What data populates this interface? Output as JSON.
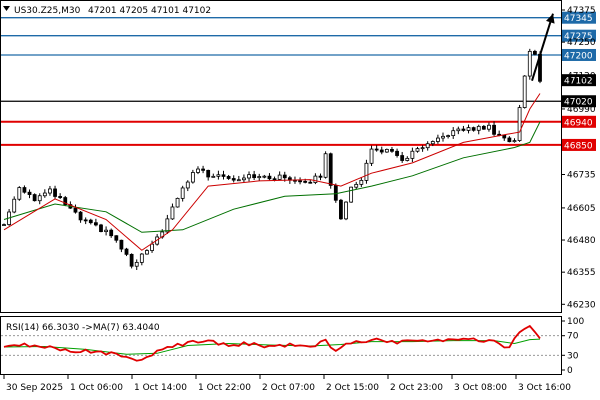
{
  "header": {
    "symbol": "US30.Z25,M30",
    "ohlc": "47201 47205 47101 47102"
  },
  "rsi_header": "RSI(14) 66.3030 ->MA(7) 63.4040",
  "colors": {
    "candle": "#000000",
    "ma_fast": "#cc0000",
    "ma_slow": "#007000",
    "support": "#e00000",
    "resistance": "#1e6aa8",
    "current": "#000000",
    "rsi": "#e00000",
    "rsi_ma": "#00a000"
  },
  "chart_data": [
    {
      "type": "candlestick",
      "symbol": "US30.Z25",
      "timeframe": "M30",
      "ylim": [
        46200,
        47410
      ],
      "y_ticks": [
        46230,
        46355,
        46480,
        46605,
        46735,
        46990,
        47120,
        47250,
        47375
      ],
      "x_ticks": [
        "30 Sep 2025",
        "1 Oct 06:00",
        "1 Oct 14:00",
        "1 Oct 22:00",
        "2 Oct 07:00",
        "2 Oct 15:00",
        "2 Oct 23:00",
        "3 Oct 08:00",
        "3 Oct 16:00"
      ],
      "levels": [
        {
          "value": 47345,
          "label": "47345",
          "kind": "resistance"
        },
        {
          "value": 47275,
          "label": "47275",
          "kind": "resistance"
        },
        {
          "value": 47200,
          "label": "47200",
          "kind": "resistance"
        },
        {
          "value": 47102,
          "label": "47102",
          "kind": "current"
        },
        {
          "value": 47020,
          "label": "47020",
          "kind": "pivot"
        },
        {
          "value": 46940,
          "label": "46940",
          "kind": "support"
        },
        {
          "value": 46850,
          "label": "46850",
          "kind": "support"
        }
      ],
      "arrow": {
        "direction": "up",
        "from": 47100,
        "to": 47345
      },
      "price_path": [
        [
          0,
          46540
        ],
        [
          3,
          46690
        ],
        [
          6,
          46640
        ],
        [
          9,
          46670
        ],
        [
          12,
          46620
        ],
        [
          15,
          46560
        ],
        [
          18,
          46530
        ],
        [
          21,
          46500
        ],
        [
          24,
          46420
        ],
        [
          25,
          46370
        ],
        [
          27,
          46420
        ],
        [
          29,
          46455
        ],
        [
          31,
          46520
        ],
        [
          33,
          46600
        ],
        [
          35,
          46680
        ],
        [
          37,
          46740
        ],
        [
          38,
          46760
        ],
        [
          40,
          46730
        ],
        [
          42,
          46740
        ],
        [
          45,
          46715
        ],
        [
          48,
          46735
        ],
        [
          51,
          46720
        ],
        [
          54,
          46725
        ],
        [
          57,
          46715
        ],
        [
          60,
          46710
        ],
        [
          62,
          46730
        ],
        [
          63,
          46810
        ],
        [
          64,
          46700
        ],
        [
          65,
          46640
        ],
        [
          66,
          46570
        ],
        [
          67,
          46620
        ],
        [
          68,
          46680
        ],
        [
          70,
          46720
        ],
        [
          72,
          46830
        ],
        [
          75,
          46830
        ],
        [
          78,
          46790
        ],
        [
          81,
          46830
        ],
        [
          84,
          46855
        ],
        [
          87,
          46895
        ],
        [
          90,
          46910
        ],
        [
          93,
          46915
        ],
        [
          95,
          46920
        ],
        [
          96,
          46900
        ],
        [
          98,
          46880
        ],
        [
          99,
          46860
        ],
        [
          100,
          46870
        ],
        [
          101,
          46990
        ],
        [
          102,
          47120
        ],
        [
          103,
          47220
        ],
        [
          104,
          47205
        ],
        [
          105,
          47102
        ]
      ],
      "ma_fast": [
        [
          0,
          46520
        ],
        [
          10,
          46640
        ],
        [
          20,
          46560
        ],
        [
          27,
          46440
        ],
        [
          33,
          46520
        ],
        [
          40,
          46690
        ],
        [
          50,
          46710
        ],
        [
          60,
          46715
        ],
        [
          66,
          46690
        ],
        [
          72,
          46740
        ],
        [
          80,
          46780
        ],
        [
          90,
          46860
        ],
        [
          98,
          46890
        ],
        [
          101,
          46900
        ],
        [
          103,
          46990
        ],
        [
          105,
          47050
        ]
      ],
      "ma_slow": [
        [
          0,
          46560
        ],
        [
          10,
          46620
        ],
        [
          20,
          46590
        ],
        [
          27,
          46510
        ],
        [
          35,
          46520
        ],
        [
          45,
          46600
        ],
        [
          55,
          46650
        ],
        [
          65,
          46660
        ],
        [
          72,
          46690
        ],
        [
          80,
          46730
        ],
        [
          90,
          46800
        ],
        [
          100,
          46840
        ],
        [
          103,
          46860
        ],
        [
          105,
          46940
        ]
      ]
    },
    {
      "type": "line",
      "title": "RSI(14) 66.3030 ->MA(7) 63.4040",
      "ylim": [
        0,
        100
      ],
      "y_ticks": [
        100,
        70,
        30,
        0
      ],
      "levels": [
        70,
        30
      ],
      "series": [
        {
          "name": "RSI(14)",
          "values": [
            [
              0,
              45
            ],
            [
              4,
              52
            ],
            [
              8,
              48
            ],
            [
              12,
              40
            ],
            [
              16,
              38
            ],
            [
              20,
              35
            ],
            [
              24,
              25
            ],
            [
              27,
              20
            ],
            [
              30,
              36
            ],
            [
              33,
              48
            ],
            [
              36,
              55
            ],
            [
              40,
              58
            ],
            [
              44,
              50
            ],
            [
              48,
              54
            ],
            [
              52,
              48
            ],
            [
              56,
              50
            ],
            [
              60,
              46
            ],
            [
              63,
              60
            ],
            [
              65,
              40
            ],
            [
              68,
              55
            ],
            [
              72,
              62
            ],
            [
              76,
              56
            ],
            [
              80,
              60
            ],
            [
              84,
              58
            ],
            [
              88,
              62
            ],
            [
              92,
              64
            ],
            [
              96,
              58
            ],
            [
              99,
              44
            ],
            [
              101,
              80
            ],
            [
              103,
              92
            ],
            [
              105,
              66
            ]
          ]
        },
        {
          "name": "MA(7)",
          "values": [
            [
              0,
              47
            ],
            [
              8,
              48
            ],
            [
              16,
              42
            ],
            [
              24,
              32
            ],
            [
              30,
              34
            ],
            [
              36,
              50
            ],
            [
              44,
              54
            ],
            [
              52,
              51
            ],
            [
              60,
              49
            ],
            [
              66,
              52
            ],
            [
              72,
              58
            ],
            [
              80,
              58
            ],
            [
              88,
              60
            ],
            [
              96,
              60
            ],
            [
              100,
              54
            ],
            [
              103,
              62
            ],
            [
              105,
              63
            ]
          ]
        }
      ]
    }
  ]
}
